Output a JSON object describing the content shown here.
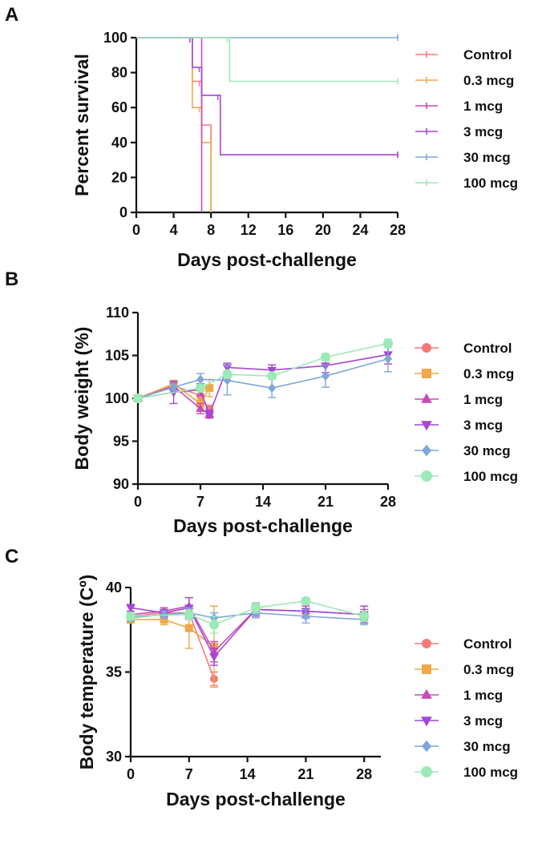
{
  "series_colors": {
    "Control": "#f47a7a",
    "0.3 mcg": "#f0a84a",
    "1 mcg": "#c94bb5",
    "3 mcg": "#a646d6",
    "30 mcg": "#7fa7d8",
    "100 mcg": "#9ceab5"
  },
  "chart_data": [
    {
      "panel": "A",
      "type": "line",
      "subtype": "kaplan-meier",
      "xlabel": "Days post-challenge",
      "ylabel": "Percent survival",
      "xlim": [
        0,
        28
      ],
      "ylim": [
        0,
        100
      ],
      "xticks": [
        0,
        4,
        8,
        12,
        16,
        20,
        24,
        28
      ],
      "yticks": [
        0,
        20,
        40,
        60,
        80,
        100
      ],
      "legend_labels": [
        "Control",
        "0.3 mcg",
        "1 mcg",
        "3 mcg",
        "30 mcg",
        "100 mcg"
      ],
      "series": [
        {
          "name": "Control",
          "steps": [
            [
              0,
              100
            ],
            [
              6,
              100
            ],
            [
              6,
              75
            ],
            [
              7,
              75
            ],
            [
              7,
              50
            ],
            [
              8,
              50
            ],
            [
              8,
              0
            ]
          ]
        },
        {
          "name": "0.3 mcg",
          "steps": [
            [
              0,
              100
            ],
            [
              6,
              100
            ],
            [
              6,
              60
            ],
            [
              7,
              60
            ],
            [
              7,
              40
            ],
            [
              8,
              40
            ],
            [
              8,
              0
            ]
          ]
        },
        {
          "name": "1 mcg",
          "steps": [
            [
              0,
              100
            ],
            [
              7,
              100
            ],
            [
              7,
              0
            ]
          ]
        },
        {
          "name": "3 mcg",
          "steps": [
            [
              0,
              100
            ],
            [
              6,
              100
            ],
            [
              6,
              83
            ],
            [
              7,
              83
            ],
            [
              7,
              67
            ],
            [
              9,
              67
            ],
            [
              9,
              33
            ],
            [
              28,
              33
            ]
          ]
        },
        {
          "name": "30 mcg",
          "steps": [
            [
              0,
              100
            ],
            [
              28,
              100
            ]
          ]
        },
        {
          "name": "100 mcg",
          "steps": [
            [
              0,
              100
            ],
            [
              10,
              100
            ],
            [
              10,
              75
            ],
            [
              28,
              75
            ]
          ]
        }
      ]
    },
    {
      "panel": "B",
      "type": "line",
      "xlabel": "Days post-challenge",
      "ylabel": "Body weight (%)",
      "xlim": [
        0,
        28
      ],
      "ylim": [
        90,
        110
      ],
      "xticks": [
        0,
        7,
        14,
        21,
        28
      ],
      "yticks": [
        90,
        95,
        100,
        105,
        110
      ],
      "legend_labels": [
        "Control",
        "0.3 mcg",
        "1 mcg",
        "3 mcg",
        "30 mcg",
        "100 mcg"
      ],
      "series": [
        {
          "name": "Control",
          "marker": "circle",
          "points": [
            [
              0,
              100
            ],
            [
              4,
              101.5
            ],
            [
              7,
              100.3
            ],
            [
              8,
              98.7
            ]
          ],
          "err": [
            0,
            0.3,
            1,
            0.5
          ]
        },
        {
          "name": "0.3 mcg",
          "marker": "square",
          "points": [
            [
              0,
              100
            ],
            [
              4,
              101.7
            ],
            [
              7,
              99.4
            ],
            [
              8,
              101.2
            ]
          ],
          "err": [
            0,
            0.3,
            0.8,
            1
          ]
        },
        {
          "name": "1 mcg",
          "marker": "triangle-up",
          "points": [
            [
              0,
              100
            ],
            [
              4,
              101.4
            ],
            [
              7,
              98.8
            ],
            [
              8,
              98.2
            ]
          ],
          "err": [
            0,
            0.4,
            0.6,
            0.4
          ]
        },
        {
          "name": "3 mcg",
          "marker": "triangle-down",
          "points": [
            [
              0,
              100
            ],
            [
              4,
              100.7
            ],
            [
              7,
              101
            ],
            [
              8,
              98.1
            ],
            [
              10,
              103.6
            ],
            [
              15,
              103.3
            ],
            [
              21,
              103.8
            ],
            [
              28,
              105.1
            ]
          ],
          "err": [
            0,
            1.3,
            0.7,
            0.4,
            0.5,
            0.6,
            0.8,
            1.1
          ]
        },
        {
          "name": "30 mcg",
          "marker": "diamond",
          "points": [
            [
              0,
              100
            ],
            [
              4,
              101.3
            ],
            [
              7,
              102.2
            ],
            [
              10,
              102.1
            ],
            [
              15,
              101.2
            ],
            [
              21,
              102.6
            ],
            [
              28,
              104.6
            ]
          ],
          "err": [
            0,
            0.4,
            0.7,
            1.7,
            1.1,
            1.3,
            1.5
          ]
        },
        {
          "name": "100 mcg",
          "marker": "circle",
          "points": [
            [
              0,
              100
            ],
            [
              7,
              101.2
            ],
            [
              10,
              102.8
            ],
            [
              15,
              102.6
            ],
            [
              21,
              104.8
            ],
            [
              28,
              106.4
            ]
          ],
          "err": [
            0,
            0.4,
            0.4,
            0.3,
            0.4,
            0.5
          ]
        }
      ]
    },
    {
      "panel": "C",
      "type": "line",
      "xlabel": "Days post-challenge",
      "ylabel": "Body temperature (Cº)",
      "xlim": [
        0,
        30
      ],
      "ylim": [
        30,
        40
      ],
      "xticks": [
        0,
        7,
        14,
        21,
        28
      ],
      "yticks": [
        30,
        35,
        40
      ],
      "legend_labels": [
        "Control",
        "0.3 mcg",
        "1 mcg",
        "3 mcg",
        "30 mcg",
        "100 mcg"
      ],
      "series": [
        {
          "name": "Control",
          "marker": "circle",
          "points": [
            [
              0,
              38.3
            ],
            [
              4,
              38.5
            ],
            [
              7,
              38.5
            ],
            [
              10,
              34.6
            ]
          ],
          "err": [
            0.2,
            0.2,
            0.4,
            0.4
          ]
        },
        {
          "name": "0.3 mcg",
          "marker": "square",
          "points": [
            [
              0,
              38.1
            ],
            [
              4,
              38.1
            ],
            [
              7,
              37.6
            ],
            [
              10,
              36.5
            ]
          ],
          "err": [
            0.2,
            0.3,
            1.2,
            2.4
          ]
        },
        {
          "name": "1 mcg",
          "marker": "triangle-up",
          "points": [
            [
              0,
              38.4
            ],
            [
              4,
              38.6
            ],
            [
              7,
              38.9
            ],
            [
              10,
              36.2
            ],
            [
              15,
              38.7
            ],
            [
              21,
              38.6
            ],
            [
              28,
              38.4
            ]
          ],
          "err": [
            0.2,
            0.2,
            0.5,
            0.6,
            0.3,
            0.3,
            0.3
          ]
        },
        {
          "name": "3 mcg",
          "marker": "triangle-down",
          "points": [
            [
              0,
              38.8
            ],
            [
              4,
              38.5
            ],
            [
              7,
              38.8
            ],
            [
              10,
              35.9
            ],
            [
              15,
              38.7
            ],
            [
              21,
              38.6
            ],
            [
              28,
              38.4
            ]
          ],
          "err": [
            0.2,
            0.2,
            0.6,
            0.5,
            0.4,
            0.4,
            0.5
          ]
        },
        {
          "name": "30 mcg",
          "marker": "diamond",
          "points": [
            [
              0,
              38.2
            ],
            [
              4,
              38.4
            ],
            [
              7,
              38.5
            ],
            [
              10,
              38.2
            ],
            [
              15,
              38.5
            ],
            [
              21,
              38.3
            ],
            [
              28,
              38.1
            ]
          ],
          "err": [
            0.2,
            0.2,
            0.3,
            0.3,
            0.3,
            0.4,
            0.3
          ]
        },
        {
          "name": "100 mcg",
          "marker": "circle",
          "points": [
            [
              0,
              38.3
            ],
            [
              7,
              38.4
            ],
            [
              10,
              37.8
            ],
            [
              15,
              38.8
            ],
            [
              21,
              39.2
            ],
            [
              28,
              38.3
            ]
          ],
          "err": [
            0.2,
            0.3,
            0.5,
            0.3,
            0.2,
            0.3
          ]
        }
      ]
    }
  ]
}
